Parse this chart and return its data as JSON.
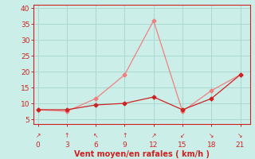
{
  "x": [
    0,
    3,
    6,
    9,
    12,
    15,
    18,
    21
  ],
  "y_moyen": [
    8,
    8,
    9.5,
    10,
    12,
    8,
    11.5,
    19
  ],
  "y_rafales": [
    8,
    7.5,
    11.5,
    19,
    36,
    7.5,
    14,
    19
  ],
  "color_moyen": "#cc2222",
  "color_rafales": "#f08080",
  "xlim": [
    -0.5,
    22
  ],
  "ylim": [
    3.5,
    41
  ],
  "yticks": [
    5,
    10,
    15,
    20,
    25,
    30,
    35,
    40
  ],
  "xticks": [
    0,
    3,
    6,
    9,
    12,
    15,
    18,
    21
  ],
  "xlabel": "Vent moyen/en rafales ( km/h )",
  "bg_color": "#cceee8",
  "grid_color": "#aad8d2",
  "arrow_chars": [
    "↗",
    "↑",
    "↖",
    "↑",
    "↗",
    "↙",
    "↘",
    "↘"
  ]
}
